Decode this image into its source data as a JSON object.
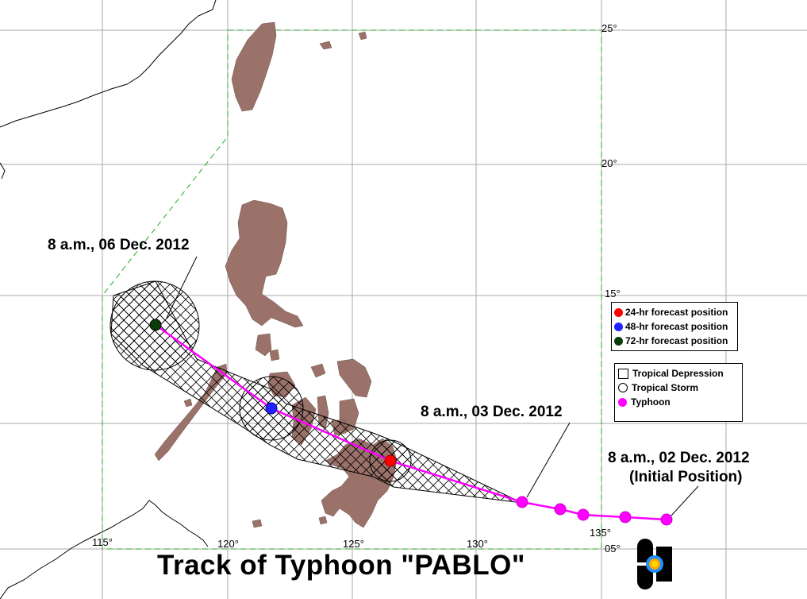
{
  "title": "Track of Typhoon \"PABLO\"",
  "grid_labels": {
    "lat_25": "25°",
    "lat_20": "20°",
    "lat_15": "15°",
    "lat_05": "05°",
    "lon_115": "115°",
    "lon_120": "120°",
    "lon_125": "125°",
    "lon_130": "130°",
    "lon_135": "135°"
  },
  "annotations": {
    "dec06": "8 a.m., 06 Dec. 2012",
    "dec03": "8 a.m., 03 Dec. 2012",
    "dec02": "8 a.m., 02 Dec. 2012",
    "initial": "(Initial Position)"
  },
  "legend_forecast": [
    {
      "label": "24-hr forecast position",
      "color": "#ff0000"
    },
    {
      "label": "48-hr forecast position",
      "color": "#0000ff"
    },
    {
      "label": "72-hr forecast position",
      "color": "#003300"
    }
  ],
  "legend_type": [
    {
      "label": "Tropical Depression",
      "symbol": "square"
    },
    {
      "label": "Tropical Storm",
      "symbol": "circle-outline"
    },
    {
      "label": "Typhoon",
      "symbol": "magenta-dot",
      "color": "#ff00ff"
    }
  ],
  "colors": {
    "land_philippines": "#9a726a",
    "track": "#ff00ff",
    "par_boundary": "#00aa00",
    "grid": "#999999"
  },
  "logo": "PAGASA-logo-icon"
}
